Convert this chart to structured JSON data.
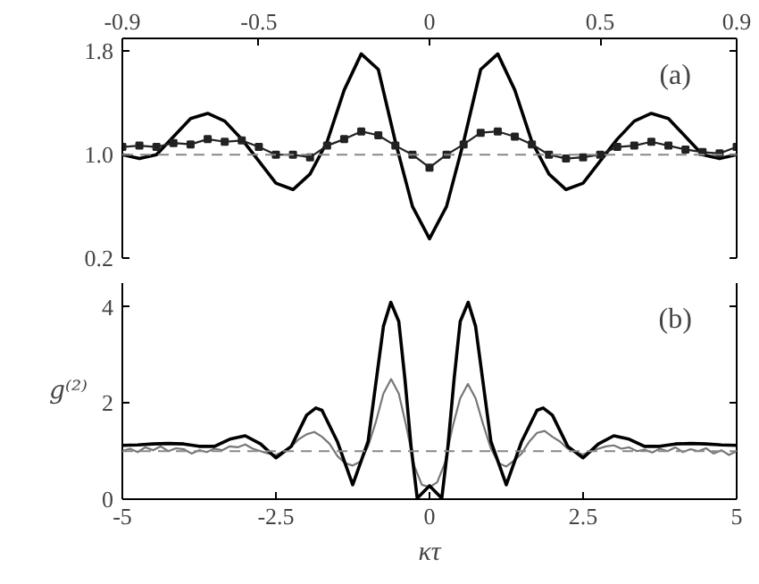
{
  "chart_data": [
    {
      "type": "line",
      "annotations": [
        "(a)"
      ],
      "xlim": [
        -0.9,
        0.9
      ],
      "xticks": [
        -0.9,
        -0.5,
        0,
        0.5,
        0.9
      ],
      "ylim": [
        0.2,
        1.9
      ],
      "yticks": [
        0.2,
        {
          "value": 1,
          "label": "1.0"
        },
        1.8
      ],
      "grid": false,
      "ref_lines": [
        {
          "axis": "y",
          "value": 1,
          "color": "#888888",
          "line_style": "dashed"
        }
      ],
      "series": [
        {
          "color": "#000000",
          "marker": "none",
          "x": [
            -0.9,
            -0.85,
            -0.8,
            -0.75,
            -0.7,
            -0.65,
            -0.6,
            -0.55,
            -0.5,
            -0.45,
            -0.4,
            -0.35,
            -0.3,
            -0.25,
            -0.2,
            -0.15,
            -0.1,
            -0.05,
            0,
            0.05,
            0.1,
            0.15,
            0.2,
            0.25,
            0.3,
            0.35,
            0.4,
            0.45,
            0.5,
            0.55,
            0.6,
            0.65,
            0.7,
            0.75,
            0.8,
            0.85,
            0.9
          ],
          "values": [
            1.0,
            0.97,
            1.0,
            1.14,
            1.28,
            1.32,
            1.26,
            1.12,
            0.95,
            0.78,
            0.73,
            0.85,
            1.1,
            1.5,
            1.78,
            1.66,
            1.1,
            0.6,
            0.35,
            0.6,
            1.1,
            1.66,
            1.78,
            1.5,
            1.1,
            0.85,
            0.73,
            0.78,
            0.95,
            1.12,
            1.26,
            1.32,
            1.28,
            1.14,
            1.0,
            0.97,
            1.0
          ]
        },
        {
          "color": "#222222",
          "marker": "square",
          "x": [
            -0.9,
            -0.85,
            -0.8,
            -0.75,
            -0.7,
            -0.65,
            -0.6,
            -0.55,
            -0.5,
            -0.45,
            -0.4,
            -0.35,
            -0.3,
            -0.25,
            -0.2,
            -0.15,
            -0.1,
            -0.05,
            0,
            0.05,
            0.1,
            0.15,
            0.2,
            0.25,
            0.3,
            0.35,
            0.4,
            0.45,
            0.5,
            0.55,
            0.6,
            0.65,
            0.7,
            0.75,
            0.8,
            0.85,
            0.9
          ],
          "values": [
            1.06,
            1.07,
            1.06,
            1.09,
            1.08,
            1.12,
            1.1,
            1.11,
            1.06,
            1.0,
            1.0,
            0.98,
            1.07,
            1.12,
            1.18,
            1.15,
            1.07,
            1.0,
            0.9,
            1.0,
            1.08,
            1.17,
            1.18,
            1.14,
            1.08,
            1.0,
            0.97,
            0.98,
            1.0,
            1.06,
            1.07,
            1.1,
            1.07,
            1.04,
            1.02,
            1.01,
            1.06
          ]
        }
      ]
    },
    {
      "type": "line",
      "annotations": [
        "(b)"
      ],
      "xlabel": "κτ",
      "ylabel": "g⁽²⁾",
      "xlim": [
        -5,
        5
      ],
      "xticks": [
        -5,
        -2.5,
        0,
        2.5,
        5
      ],
      "ylim": [
        0,
        4.5
      ],
      "yticks": [
        0,
        2,
        4
      ],
      "grid": false,
      "ref_lines": [
        {
          "axis": "y",
          "value": 1,
          "color": "#888888",
          "line_style": "dashed"
        }
      ],
      "series": [
        {
          "color": "#777777",
          "marker": "none",
          "x": [
            -5,
            -4.875,
            -4.75,
            -4.625,
            -4.5,
            -4.375,
            -4.25,
            -4.125,
            -4,
            -3.875,
            -3.75,
            -3.625,
            -3.5,
            -3.375,
            -3.25,
            -3.125,
            -3,
            -2.875,
            -2.75,
            -2.625,
            -2.5,
            -2.375,
            -2.25,
            -2.125,
            -2,
            -1.875,
            -1.75,
            -1.625,
            -1.5,
            -1.375,
            -1.25,
            -1.125,
            -1,
            -0.875,
            -0.75,
            -0.625,
            -0.5,
            -0.375,
            -0.25,
            -0.125,
            0,
            0.125,
            0.25,
            0.375,
            0.5,
            0.625,
            0.75,
            0.875,
            1,
            1.125,
            1.25,
            1.375,
            1.5,
            1.625,
            1.75,
            1.875,
            2,
            2.125,
            2.25,
            2.375,
            2.5,
            2.625,
            2.75,
            2.875,
            3,
            3.125,
            3.25,
            3.375,
            3.5,
            3.625,
            3.75,
            3.875,
            4,
            4.125,
            4.25,
            4.375,
            4.5,
            4.625,
            4.75,
            4.875,
            5
          ],
          "values": [
            1.0,
            1.05,
            0.98,
            1.08,
            1.02,
            1.1,
            1.0,
            1.06,
            1.04,
            0.95,
            1.02,
            0.98,
            1.05,
            1.02,
            1.1,
            1.08,
            1.14,
            1.05,
            1.0,
            0.95,
            0.92,
            1.0,
            1.1,
            1.25,
            1.35,
            1.4,
            1.3,
            1.15,
            0.9,
            0.75,
            0.7,
            0.78,
            1.1,
            1.6,
            2.2,
            2.5,
            2.2,
            1.5,
            0.7,
            0.3,
            0.25,
            0.35,
            0.75,
            1.5,
            2.1,
            2.4,
            2.1,
            1.55,
            1.05,
            0.75,
            0.68,
            0.8,
            0.95,
            1.2,
            1.38,
            1.42,
            1.3,
            1.2,
            1.05,
            0.98,
            0.93,
            1.0,
            1.05,
            1.1,
            1.12,
            1.05,
            1.08,
            1.0,
            1.03,
            0.97,
            1.05,
            1.0,
            1.08,
            0.98,
            1.04,
            1.0,
            1.06,
            0.95,
            1.02,
            0.92,
            1.0
          ]
        },
        {
          "color": "#000000",
          "marker": "none",
          "x": [
            -5,
            -4.75,
            -4.5,
            -4.25,
            -4,
            -3.75,
            -3.5,
            -3.25,
            -3,
            -2.75,
            -2.5,
            -2.25,
            -2,
            -1.85,
            -1.75,
            -1.5,
            -1.25,
            -1,
            -0.75,
            -0.63,
            -0.5,
            -0.4,
            -0.3,
            -0.2,
            -0.1,
            0,
            0.1,
            0.2,
            0.3,
            0.4,
            0.5,
            0.63,
            0.75,
            1,
            1.25,
            1.5,
            1.75,
            1.85,
            2,
            2.25,
            2.5,
            2.75,
            3,
            3.25,
            3.5,
            3.75,
            4,
            4.25,
            4.5,
            4.75,
            5
          ],
          "values": [
            1.12,
            1.13,
            1.15,
            1.16,
            1.15,
            1.1,
            1.1,
            1.25,
            1.32,
            1.15,
            0.86,
            1.1,
            1.75,
            1.9,
            1.85,
            1.2,
            0.3,
            1.2,
            3.6,
            4.1,
            3.7,
            2.5,
            1.1,
            0.02,
            0.15,
            0.28,
            0.15,
            0.02,
            1.1,
            2.5,
            3.7,
            4.1,
            3.6,
            1.2,
            0.3,
            1.2,
            1.85,
            1.9,
            1.75,
            1.1,
            0.86,
            1.15,
            1.32,
            1.25,
            1.1,
            1.1,
            1.15,
            1.16,
            1.15,
            1.13,
            1.12
          ]
        }
      ]
    }
  ]
}
